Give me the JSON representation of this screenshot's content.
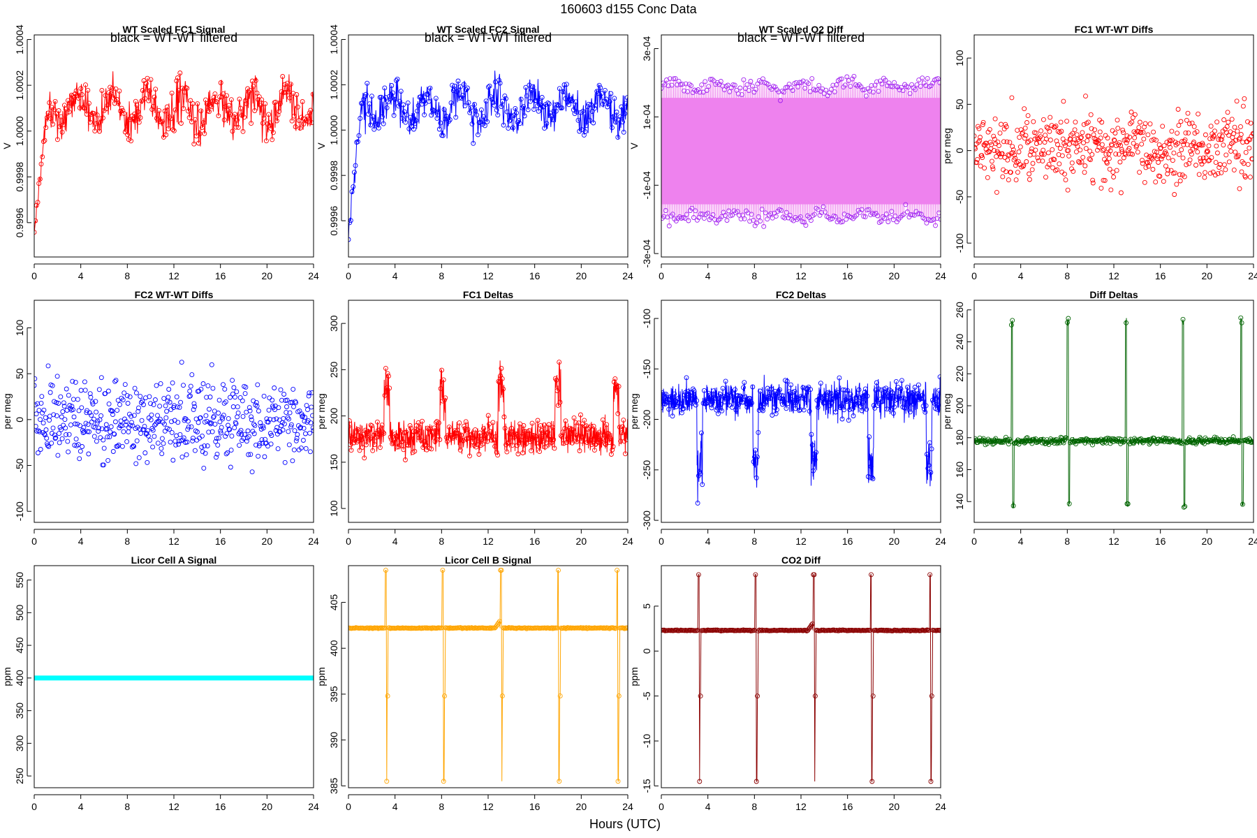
{
  "figure": {
    "title": "160603    d155    Conc Data",
    "xlabel": "Hours (UTC)"
  },
  "chart_data": [
    {
      "id": "p1",
      "type": "line",
      "title": "WT Scaled FC1 Signal",
      "annotation": "black = WT-WT filtered",
      "ylabel": "V",
      "color": "#ff0000",
      "xlim": [
        0,
        24
      ],
      "ylim": [
        0.99945,
        1.00042
      ],
      "x_ticks": [
        "0",
        "4",
        "8",
        "12",
        "16",
        "20",
        "24"
      ],
      "y_ticks": [
        "0.9996",
        "0.9998",
        "1.0000",
        "1.0002",
        "1.0004"
      ],
      "y_tick_values": [
        0.9996,
        0.9998,
        1.0,
        1.0002,
        1.0004
      ],
      "pattern": {
        "kind": "signal",
        "start": 0.99955,
        "base": 1.0001,
        "rise": 1.2,
        "noise": 9e-05,
        "wave": 6e-05,
        "n": 480
      }
    },
    {
      "id": "p2",
      "type": "line",
      "title": "WT Scaled FC2 Signal",
      "annotation": "black = WT-WT filtered",
      "ylabel": "V",
      "color": "#0000ff",
      "xlim": [
        0,
        24
      ],
      "ylim": [
        0.99944,
        1.00042
      ],
      "x_ticks": [
        "0",
        "4",
        "8",
        "12",
        "16",
        "20",
        "24"
      ],
      "y_ticks": [
        "0.9996",
        "0.9998",
        "1.0000",
        "1.0002",
        "1.0004"
      ],
      "y_tick_values": [
        0.9996,
        0.9998,
        1.0,
        1.0002,
        1.0004
      ],
      "pattern": {
        "kind": "signal",
        "start": 0.99955,
        "base": 1.0001,
        "rise": 1.2,
        "noise": 9e-05,
        "wave": 6e-05,
        "n": 480
      }
    },
    {
      "id": "p3",
      "type": "line",
      "title": "WT Scaled O2 Diff",
      "annotation": "black = WT-WT filtered",
      "ylabel": "V",
      "color": "#ee82ee",
      "color2": "#a020f0",
      "xlim": [
        0,
        24
      ],
      "ylim": [
        -0.00031,
        0.00034
      ],
      "x_ticks": [
        "0",
        "4",
        "8",
        "12",
        "16",
        "20",
        "24"
      ],
      "y_ticks": [
        "-3e-04",
        "-1e-04",
        "1e-04",
        "3e-04"
      ],
      "y_tick_values": [
        -0.0003,
        -0.0001,
        0.0001,
        0.0003
      ],
      "pattern": {
        "kind": "band",
        "upper": 0.00019,
        "lower": -0.00019,
        "noise": 2e-05,
        "n": 320
      }
    },
    {
      "id": "p4",
      "type": "scatter",
      "title": "FC1 WT-WT Diffs",
      "ylabel": "per meg",
      "color": "#ff0000",
      "xlim": [
        0,
        24
      ],
      "ylim": [
        -115,
        125
      ],
      "x_ticks": [
        "0",
        "4",
        "8",
        "12",
        "16",
        "20",
        "24"
      ],
      "y_ticks": [
        "-100",
        "-50",
        "0",
        "50",
        "100"
      ],
      "y_tick_values": [
        -100,
        -50,
        0,
        50,
        100
      ],
      "pattern": {
        "kind": "scatter",
        "mean": 5,
        "sd": 38,
        "n": 520
      }
    },
    {
      "id": "p5",
      "type": "scatter",
      "title": "FC2 WT-WT Diffs",
      "ylabel": "per meg",
      "color": "#0000ff",
      "xlim": [
        0,
        24
      ],
      "ylim": [
        -112,
        130
      ],
      "x_ticks": [
        "0",
        "4",
        "8",
        "12",
        "16",
        "20",
        "24"
      ],
      "y_ticks": [
        "-100",
        "-50",
        "0",
        "50",
        "100"
      ],
      "y_tick_values": [
        -100,
        -50,
        0,
        50,
        100
      ],
      "pattern": {
        "kind": "scatter",
        "mean": 0,
        "sd": 42,
        "n": 520
      }
    },
    {
      "id": "p6",
      "type": "line",
      "title": "FC1 Deltas",
      "ylabel": "per meg",
      "color": "#ff0000",
      "xlim": [
        0,
        24
      ],
      "ylim": [
        85,
        325
      ],
      "x_ticks": [
        "0",
        "4",
        "8",
        "12",
        "16",
        "20",
        "24"
      ],
      "y_ticks": [
        "100",
        "150",
        "200",
        "250",
        "300"
      ],
      "y_tick_values": [
        100,
        150,
        200,
        250,
        300
      ],
      "pattern": {
        "kind": "deltas",
        "base": 178,
        "noise": 17,
        "spike": 70,
        "spikes": [
          3.3,
          8.1,
          13.1,
          18.0,
          23.0
        ],
        "n": 900
      }
    },
    {
      "id": "p7",
      "type": "line",
      "title": "FC2 Deltas",
      "ylabel": "per meg",
      "color": "#0000ff",
      "xlim": [
        0,
        24
      ],
      "ylim": [
        -302,
        -82
      ],
      "x_ticks": [
        "0",
        "4",
        "8",
        "12",
        "16",
        "20",
        "24"
      ],
      "y_ticks": [
        "-300",
        "-250",
        "-200",
        "-150",
        "-100"
      ],
      "y_tick_values": [
        -300,
        -250,
        -200,
        -150,
        -100
      ],
      "pattern": {
        "kind": "deltas",
        "base": -180,
        "noise": 16,
        "spike": -80,
        "spikes": [
          3.3,
          8.1,
          13.1,
          18.0,
          23.0
        ],
        "n": 900
      }
    },
    {
      "id": "p8",
      "type": "line",
      "title": "Diff Deltas",
      "ylabel": "per meg",
      "color": "#006400",
      "xlim": [
        0,
        24
      ],
      "ylim": [
        127,
        266
      ],
      "x_ticks": [
        "0",
        "4",
        "8",
        "12",
        "16",
        "20",
        "24"
      ],
      "y_ticks": [
        "140",
        "160",
        "180",
        "200",
        "220",
        "240",
        "260"
      ],
      "y_tick_values": [
        140,
        160,
        180,
        200,
        220,
        240,
        260
      ],
      "pattern": {
        "kind": "calib",
        "base": 178,
        "noise": 2,
        "hi": 255,
        "lo": 135,
        "spikes": [
          3.3,
          8.1,
          13.1,
          18.0,
          23.0
        ],
        "n": 900
      }
    },
    {
      "id": "p9",
      "type": "line",
      "title": "Licor Cell A Signal",
      "ylabel": "ppm",
      "color": "#00ffff",
      "xlim": [
        0,
        24
      ],
      "ylim": [
        232,
        572
      ],
      "x_ticks": [
        "0",
        "4",
        "8",
        "12",
        "16",
        "20",
        "24"
      ],
      "y_ticks": [
        "250",
        "300",
        "350",
        "400",
        "450",
        "500",
        "550"
      ],
      "y_tick_values": [
        250,
        300,
        350,
        400,
        450,
        500,
        550
      ],
      "pattern": {
        "kind": "flat",
        "base": 400,
        "n": 240
      }
    },
    {
      "id": "p10",
      "type": "line",
      "title": "Licor Cell B Signal",
      "ylabel": "ppm",
      "color": "#ffa500",
      "xlim": [
        0,
        24
      ],
      "ylim": [
        384.8,
        409
      ],
      "x_ticks": [
        "0",
        "4",
        "8",
        "12",
        "16",
        "20",
        "24"
      ],
      "y_ticks": [
        "385",
        "390",
        "395",
        "400",
        "405"
      ],
      "y_tick_values": [
        385,
        390,
        395,
        400,
        405
      ],
      "pattern": {
        "kind": "licor",
        "base": 402.2,
        "hi": 408.5,
        "lo": 385.5,
        "mid": 394.8,
        "spikes": [
          3.2,
          8.1,
          13.1,
          18.0,
          23.1
        ],
        "n": 600
      }
    },
    {
      "id": "p11",
      "type": "line",
      "title": "CO2 Diff",
      "ylabel": "ppm",
      "color": "#8b0000",
      "xlim": [
        0,
        24
      ],
      "ylim": [
        -15.2,
        9.5
      ],
      "x_ticks": [
        "0",
        "4",
        "8",
        "12",
        "16",
        "20",
        "24"
      ],
      "y_ticks": [
        "-15",
        "-10",
        "-5",
        "0",
        "5"
      ],
      "y_tick_values": [
        -15,
        -10,
        -5,
        0,
        5
      ],
      "pattern": {
        "kind": "licor",
        "base": 2.3,
        "hi": 8.5,
        "lo": -14.5,
        "mid": -5.0,
        "spikes": [
          3.2,
          8.1,
          13.1,
          18.0,
          23.1
        ],
        "n": 600
      }
    }
  ]
}
